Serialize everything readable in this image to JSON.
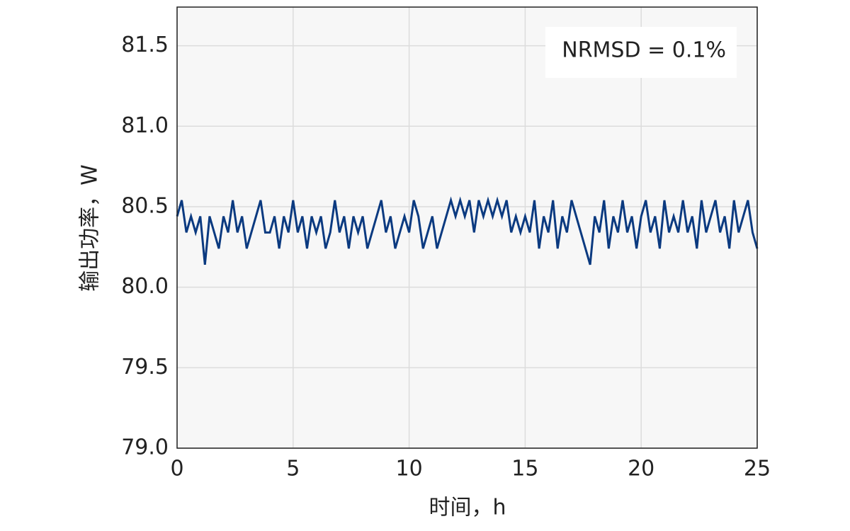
{
  "chart_data": {
    "type": "line",
    "annotation": "NRMSD = 0.1%",
    "x_label": "时间，h",
    "y_label": "输出功率，W",
    "color": "#0b3a80",
    "grid": true,
    "xlim": [
      0,
      25
    ],
    "ylim": [
      79,
      81.74
    ],
    "xticks": [
      0,
      5,
      10,
      15,
      20,
      25
    ],
    "yticks": [
      {
        "value": 79,
        "label": "79.0"
      },
      {
        "value": 79.5,
        "label": "79.5"
      },
      {
        "value": 80,
        "label": "80.0"
      },
      {
        "value": 80.5,
        "label": "80.5"
      },
      {
        "value": 81,
        "label": "81.0"
      },
      {
        "value": 81.5,
        "label": "81.5"
      }
    ],
    "x": [
      0,
      0.2,
      0.4,
      0.6,
      0.8,
      1,
      1.2,
      1.4,
      1.6,
      1.8,
      2,
      2.2,
      2.4,
      2.6,
      2.8,
      3,
      3.2,
      3.4,
      3.6,
      3.8,
      4,
      4.2,
      4.4,
      4.6,
      4.8,
      5,
      5.2,
      5.4,
      5.6,
      5.8,
      6,
      6.2,
      6.4,
      6.6,
      6.8,
      7,
      7.2,
      7.4,
      7.6,
      7.8,
      8,
      8.2,
      8.4,
      8.6,
      8.8,
      9,
      9.2,
      9.4,
      9.6,
      9.8,
      10,
      10.2,
      10.4,
      10.6,
      10.8,
      11,
      11.2,
      11.4,
      11.6,
      11.8,
      12,
      12.2,
      12.4,
      12.6,
      12.8,
      13,
      13.2,
      13.4,
      13.6,
      13.8,
      14,
      14.2,
      14.4,
      14.6,
      14.8,
      15,
      15.2,
      15.4,
      15.6,
      15.8,
      16,
      16.2,
      16.4,
      16.6,
      16.8,
      17,
      17.2,
      17.4,
      17.6,
      17.8,
      18,
      18.2,
      18.4,
      18.6,
      18.8,
      19,
      19.2,
      19.4,
      19.6,
      19.8,
      20,
      20.2,
      20.4,
      20.6,
      20.8,
      21,
      21.2,
      21.4,
      21.6,
      21.8,
      22,
      22.2,
      22.4,
      22.6,
      22.8,
      23,
      23.2,
      23.4,
      23.6,
      23.8,
      24,
      24.2,
      24.4,
      24.6,
      24.8,
      25
    ],
    "values": [
      80.44,
      80.54,
      80.34,
      80.44,
      80.34,
      80.44,
      80.14,
      80.44,
      80.34,
      80.24,
      80.44,
      80.34,
      80.54,
      80.34,
      80.44,
      80.24,
      80.34,
      80.44,
      80.54,
      80.34,
      80.34,
      80.44,
      80.24,
      80.44,
      80.34,
      80.54,
      80.34,
      80.44,
      80.24,
      80.44,
      80.34,
      80.44,
      80.24,
      80.34,
      80.54,
      80.34,
      80.44,
      80.24,
      80.44,
      80.34,
      80.44,
      80.24,
      80.34,
      80.44,
      80.54,
      80.34,
      80.44,
      80.24,
      80.34,
      80.44,
      80.34,
      80.54,
      80.44,
      80.24,
      80.34,
      80.44,
      80.24,
      80.34,
      80.44,
      80.54,
      80.44,
      80.54,
      80.44,
      80.54,
      80.34,
      80.54,
      80.44,
      80.54,
      80.44,
      80.54,
      80.44,
      80.54,
      80.34,
      80.44,
      80.34,
      80.44,
      80.34,
      80.54,
      80.24,
      80.44,
      80.34,
      80.54,
      80.24,
      80.44,
      80.34,
      80.54,
      80.44,
      80.34,
      80.24,
      80.14,
      80.44,
      80.34,
      80.54,
      80.24,
      80.44,
      80.34,
      80.54,
      80.34,
      80.44,
      80.24,
      80.44,
      80.54,
      80.34,
      80.44,
      80.24,
      80.54,
      80.34,
      80.44,
      80.34,
      80.54,
      80.34,
      80.44,
      80.24,
      80.54,
      80.34,
      80.44,
      80.54,
      80.34,
      80.44,
      80.24,
      80.54,
      80.34,
      80.44,
      80.54,
      80.34,
      80.24
    ]
  }
}
